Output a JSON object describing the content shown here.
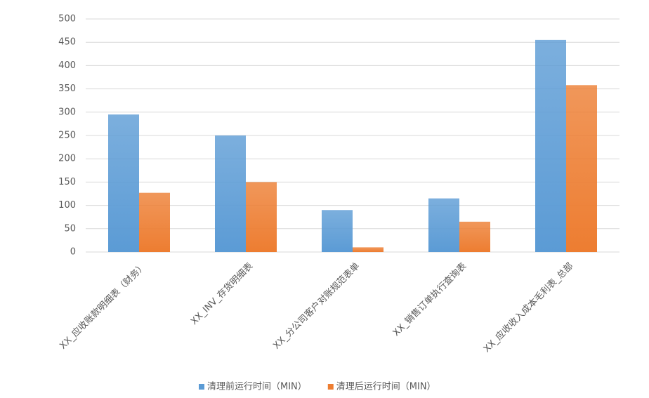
{
  "chart_data": {
    "type": "bar",
    "categories": [
      "XX_应收账款明细表（财务）",
      "XX_INV_存货明细表",
      "XX_分公司客户对账规范表单",
      "XX_销售订单执行查询表",
      "XX_应收收入成本毛利表_总部"
    ],
    "series": [
      {
        "name": "清理前运行时间（MIN）",
        "color": "#5b9bd5",
        "values": [
          295,
          250,
          90,
          115,
          455
        ]
      },
      {
        "name": "清理后运行时间（MIN）",
        "color": "#ed7d31",
        "values": [
          127,
          150,
          10,
          65,
          358
        ]
      }
    ],
    "ylim": [
      0,
      500
    ],
    "yticks": [
      0,
      50,
      100,
      150,
      200,
      250,
      300,
      350,
      400,
      450,
      500
    ],
    "grid": true,
    "legend": "bottom"
  }
}
